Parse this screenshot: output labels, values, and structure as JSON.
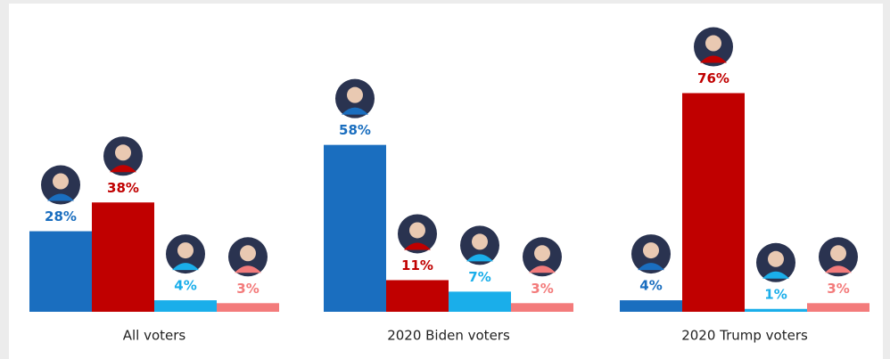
{
  "chart_data": {
    "type": "bar",
    "categories": [
      "All voters",
      "2020 Biden voters",
      "2020 Trump voters"
    ],
    "series": [
      {
        "color": "#1a6ebf",
        "values": [
          28,
          58,
          4
        ],
        "value_labels": [
          "28%",
          "58%",
          "4%"
        ]
      },
      {
        "color": "#c00000",
        "values": [
          38,
          11,
          76
        ],
        "value_labels": [
          "38%",
          "11%",
          "76%"
        ]
      },
      {
        "color": "#1aaeea",
        "values": [
          4,
          7,
          1
        ],
        "value_labels": [
          "4%",
          "7%",
          "1%"
        ]
      },
      {
        "color": "#f37b7b",
        "values": [
          3,
          3,
          3
        ],
        "value_labels": [
          "3%",
          "3%",
          "3%"
        ]
      }
    ]
  }
}
